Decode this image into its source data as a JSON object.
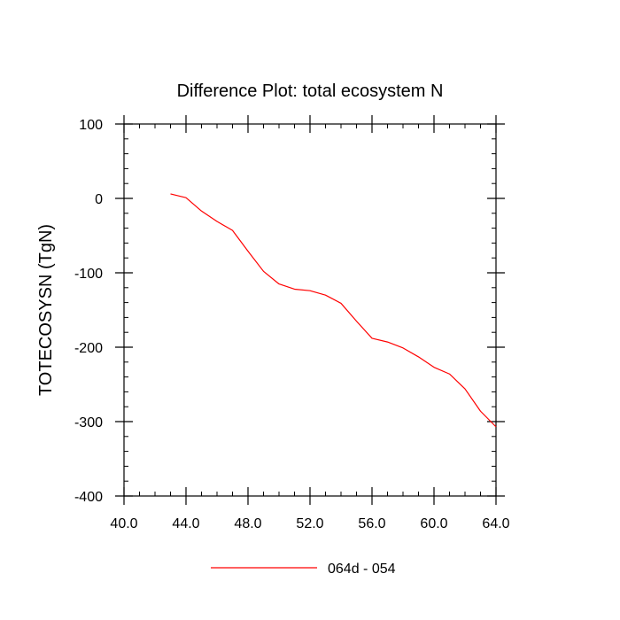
{
  "chart_data": {
    "type": "line",
    "title": "Difference Plot: total ecosystem N",
    "xlabel": "",
    "ylabel": "TOTECOSYSN  (TgN)",
    "xlim": [
      40.0,
      64.0
    ],
    "ylim": [
      -400,
      100
    ],
    "x_ticks": [
      40.0,
      44.0,
      48.0,
      52.0,
      56.0,
      60.0,
      64.0
    ],
    "x_tick_labels": [
      "40.0",
      "44.0",
      "48.0",
      "52.0",
      "56.0",
      "60.0",
      "64.0"
    ],
    "y_ticks": [
      -400,
      -300,
      -200,
      -100,
      0,
      100
    ],
    "y_tick_labels": [
      "-400",
      "-300",
      "-200",
      "-100",
      "0",
      "100"
    ],
    "grid": false,
    "legend_position": "bottom-center",
    "series": [
      {
        "name": "064d - 054",
        "color": "#ff0000",
        "x": [
          43,
          44,
          45,
          46,
          47,
          48,
          49,
          50,
          51,
          52,
          53,
          54,
          55,
          56,
          57,
          58,
          59,
          60,
          61,
          62,
          63,
          64
        ],
        "y": [
          6,
          1,
          -17,
          -31,
          -43,
          -71,
          -98,
          -115,
          -122,
          -124,
          -130,
          -141,
          -165,
          -188,
          -193,
          -201,
          -213,
          -227,
          -236,
          -256,
          -286,
          -307
        ]
      }
    ]
  }
}
